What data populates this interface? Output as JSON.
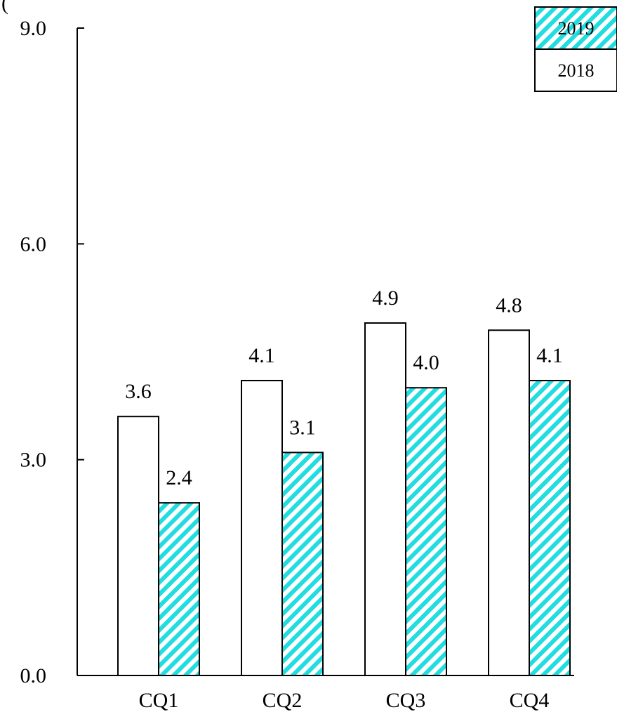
{
  "chart_data": {
    "type": "bar",
    "categories": [
      "CQ1",
      "CQ2",
      "CQ3",
      "CQ4"
    ],
    "series": [
      {
        "name": "2018",
        "values": [
          3.6,
          4.1,
          4.9,
          4.8
        ],
        "labels": [
          "3.6",
          "4.1",
          "4.9",
          "4.8"
        ],
        "fill": "#ffffff",
        "pattern": "none"
      },
      {
        "name": "2019",
        "values": [
          2.4,
          3.1,
          4.0,
          4.1
        ],
        "labels": [
          "2.4",
          "3.1",
          "4.0",
          "4.1"
        ],
        "fill": "#22dde0",
        "pattern": "diagonal-hatch"
      }
    ],
    "y_ticks": [
      {
        "value": 0,
        "label": "0.0"
      },
      {
        "value": 3,
        "label": "3.0"
      },
      {
        "value": 6,
        "label": "6.0"
      },
      {
        "value": 9,
        "label": "9.0"
      }
    ],
    "ylim": [
      0,
      9
    ],
    "top_left_fragment": "(",
    "legend_placement": "top-right",
    "legend_order": [
      "2019",
      "2018"
    ],
    "grid": false,
    "colors": {
      "hatch": "#22dde0",
      "outline": "#000000"
    }
  }
}
